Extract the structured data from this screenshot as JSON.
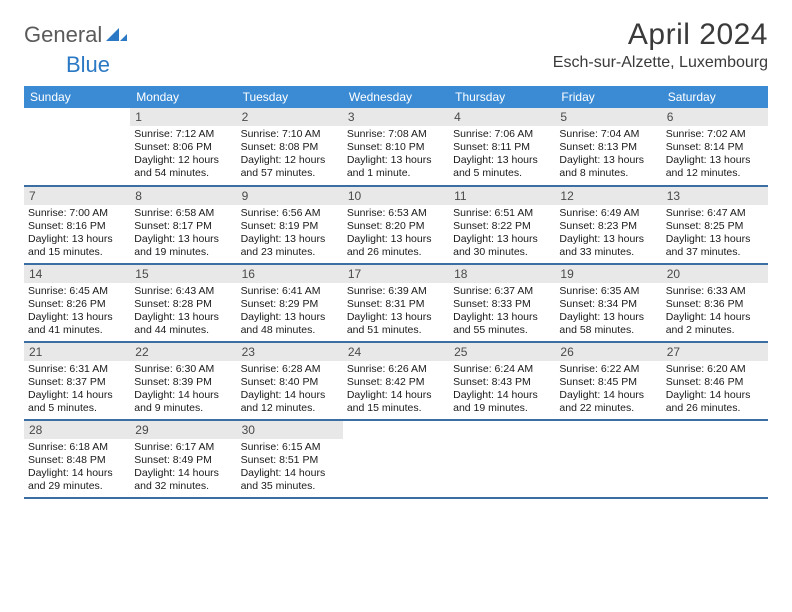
{
  "brand": {
    "general": "General",
    "blue": "Blue"
  },
  "title": "April 2024",
  "location": "Esch-sur-Alzette, Luxembourg",
  "colors": {
    "header_bg": "#3b8bd4",
    "header_text": "#ffffff",
    "daynum_bg": "#e8e8e8",
    "daynum_text": "#4a4a4a",
    "border": "#3b6fa3",
    "brand_gray": "#5a5a5a",
    "brand_blue": "#2b78c4",
    "body_text": "#1a1a1a",
    "title_text": "#3a3a3a",
    "page_bg": "#ffffff"
  },
  "fonts": {
    "body_size": 10.5,
    "header_size": 12,
    "title_size": 30,
    "location_size": 16
  },
  "dayNames": [
    "Sunday",
    "Monday",
    "Tuesday",
    "Wednesday",
    "Thursday",
    "Friday",
    "Saturday"
  ],
  "weeks": [
    [
      null,
      {
        "n": "1",
        "sr": "Sunrise: 7:12 AM",
        "ss": "Sunset: 8:06 PM",
        "d1": "Daylight: 12 hours",
        "d2": "and 54 minutes."
      },
      {
        "n": "2",
        "sr": "Sunrise: 7:10 AM",
        "ss": "Sunset: 8:08 PM",
        "d1": "Daylight: 12 hours",
        "d2": "and 57 minutes."
      },
      {
        "n": "3",
        "sr": "Sunrise: 7:08 AM",
        "ss": "Sunset: 8:10 PM",
        "d1": "Daylight: 13 hours",
        "d2": "and 1 minute."
      },
      {
        "n": "4",
        "sr": "Sunrise: 7:06 AM",
        "ss": "Sunset: 8:11 PM",
        "d1": "Daylight: 13 hours",
        "d2": "and 5 minutes."
      },
      {
        "n": "5",
        "sr": "Sunrise: 7:04 AM",
        "ss": "Sunset: 8:13 PM",
        "d1": "Daylight: 13 hours",
        "d2": "and 8 minutes."
      },
      {
        "n": "6",
        "sr": "Sunrise: 7:02 AM",
        "ss": "Sunset: 8:14 PM",
        "d1": "Daylight: 13 hours",
        "d2": "and 12 minutes."
      }
    ],
    [
      {
        "n": "7",
        "sr": "Sunrise: 7:00 AM",
        "ss": "Sunset: 8:16 PM",
        "d1": "Daylight: 13 hours",
        "d2": "and 15 minutes."
      },
      {
        "n": "8",
        "sr": "Sunrise: 6:58 AM",
        "ss": "Sunset: 8:17 PM",
        "d1": "Daylight: 13 hours",
        "d2": "and 19 minutes."
      },
      {
        "n": "9",
        "sr": "Sunrise: 6:56 AM",
        "ss": "Sunset: 8:19 PM",
        "d1": "Daylight: 13 hours",
        "d2": "and 23 minutes."
      },
      {
        "n": "10",
        "sr": "Sunrise: 6:53 AM",
        "ss": "Sunset: 8:20 PM",
        "d1": "Daylight: 13 hours",
        "d2": "and 26 minutes."
      },
      {
        "n": "11",
        "sr": "Sunrise: 6:51 AM",
        "ss": "Sunset: 8:22 PM",
        "d1": "Daylight: 13 hours",
        "d2": "and 30 minutes."
      },
      {
        "n": "12",
        "sr": "Sunrise: 6:49 AM",
        "ss": "Sunset: 8:23 PM",
        "d1": "Daylight: 13 hours",
        "d2": "and 33 minutes."
      },
      {
        "n": "13",
        "sr": "Sunrise: 6:47 AM",
        "ss": "Sunset: 8:25 PM",
        "d1": "Daylight: 13 hours",
        "d2": "and 37 minutes."
      }
    ],
    [
      {
        "n": "14",
        "sr": "Sunrise: 6:45 AM",
        "ss": "Sunset: 8:26 PM",
        "d1": "Daylight: 13 hours",
        "d2": "and 41 minutes."
      },
      {
        "n": "15",
        "sr": "Sunrise: 6:43 AM",
        "ss": "Sunset: 8:28 PM",
        "d1": "Daylight: 13 hours",
        "d2": "and 44 minutes."
      },
      {
        "n": "16",
        "sr": "Sunrise: 6:41 AM",
        "ss": "Sunset: 8:29 PM",
        "d1": "Daylight: 13 hours",
        "d2": "and 48 minutes."
      },
      {
        "n": "17",
        "sr": "Sunrise: 6:39 AM",
        "ss": "Sunset: 8:31 PM",
        "d1": "Daylight: 13 hours",
        "d2": "and 51 minutes."
      },
      {
        "n": "18",
        "sr": "Sunrise: 6:37 AM",
        "ss": "Sunset: 8:33 PM",
        "d1": "Daylight: 13 hours",
        "d2": "and 55 minutes."
      },
      {
        "n": "19",
        "sr": "Sunrise: 6:35 AM",
        "ss": "Sunset: 8:34 PM",
        "d1": "Daylight: 13 hours",
        "d2": "and 58 minutes."
      },
      {
        "n": "20",
        "sr": "Sunrise: 6:33 AM",
        "ss": "Sunset: 8:36 PM",
        "d1": "Daylight: 14 hours",
        "d2": "and 2 minutes."
      }
    ],
    [
      {
        "n": "21",
        "sr": "Sunrise: 6:31 AM",
        "ss": "Sunset: 8:37 PM",
        "d1": "Daylight: 14 hours",
        "d2": "and 5 minutes."
      },
      {
        "n": "22",
        "sr": "Sunrise: 6:30 AM",
        "ss": "Sunset: 8:39 PM",
        "d1": "Daylight: 14 hours",
        "d2": "and 9 minutes."
      },
      {
        "n": "23",
        "sr": "Sunrise: 6:28 AM",
        "ss": "Sunset: 8:40 PM",
        "d1": "Daylight: 14 hours",
        "d2": "and 12 minutes."
      },
      {
        "n": "24",
        "sr": "Sunrise: 6:26 AM",
        "ss": "Sunset: 8:42 PM",
        "d1": "Daylight: 14 hours",
        "d2": "and 15 minutes."
      },
      {
        "n": "25",
        "sr": "Sunrise: 6:24 AM",
        "ss": "Sunset: 8:43 PM",
        "d1": "Daylight: 14 hours",
        "d2": "and 19 minutes."
      },
      {
        "n": "26",
        "sr": "Sunrise: 6:22 AM",
        "ss": "Sunset: 8:45 PM",
        "d1": "Daylight: 14 hours",
        "d2": "and 22 minutes."
      },
      {
        "n": "27",
        "sr": "Sunrise: 6:20 AM",
        "ss": "Sunset: 8:46 PM",
        "d1": "Daylight: 14 hours",
        "d2": "and 26 minutes."
      }
    ],
    [
      {
        "n": "28",
        "sr": "Sunrise: 6:18 AM",
        "ss": "Sunset: 8:48 PM",
        "d1": "Daylight: 14 hours",
        "d2": "and 29 minutes."
      },
      {
        "n": "29",
        "sr": "Sunrise: 6:17 AM",
        "ss": "Sunset: 8:49 PM",
        "d1": "Daylight: 14 hours",
        "d2": "and 32 minutes."
      },
      {
        "n": "30",
        "sr": "Sunrise: 6:15 AM",
        "ss": "Sunset: 8:51 PM",
        "d1": "Daylight: 14 hours",
        "d2": "and 35 minutes."
      },
      null,
      null,
      null,
      null
    ]
  ]
}
